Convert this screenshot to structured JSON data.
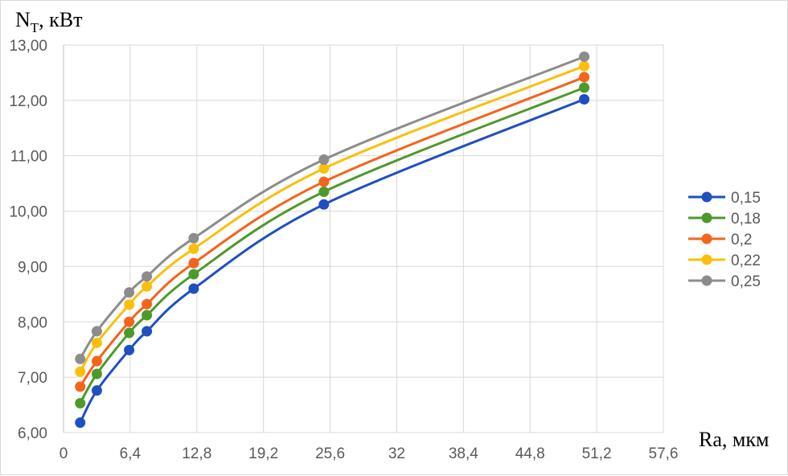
{
  "chart_data": {
    "type": "line",
    "ylabel_main": "N",
    "ylabel_sub": "T",
    "ylabel_unit": ", кВт",
    "xlabel": "Ra, мкм",
    "xlim": [
      0,
      57.6
    ],
    "ylim": [
      6,
      13
    ],
    "x_ticks": [
      0,
      6.4,
      12.8,
      19.2,
      25.6,
      32,
      38.4,
      44.8,
      51.2,
      57.6
    ],
    "x_tick_labels": [
      "0",
      "6,4",
      "12,8",
      "19,2",
      "25,6",
      "32",
      "38,4",
      "44,8",
      "51,2",
      "57,6"
    ],
    "y_ticks": [
      6,
      7,
      8,
      9,
      10,
      11,
      12,
      13
    ],
    "y_tick_labels": [
      "6,00",
      "7,00",
      "8,00",
      "9,00",
      "10,00",
      "11,00",
      "12,00",
      "13,00"
    ],
    "grid": true,
    "legend_position": "right",
    "x": [
      1.6,
      3.2,
      6.3,
      8.0,
      12.5,
      25.0,
      50.0
    ],
    "series": [
      {
        "name": "0,15",
        "color": "#1f4fc1",
        "values": [
          6.18,
          6.76,
          7.49,
          7.83,
          8.6,
          10.12,
          12.02
        ]
      },
      {
        "name": "0,18",
        "color": "#4c9a2a",
        "values": [
          6.53,
          7.06,
          7.8,
          8.12,
          8.86,
          10.35,
          12.23
        ]
      },
      {
        "name": "0,2",
        "color": "#f4641c",
        "values": [
          6.83,
          7.29,
          8.0,
          8.32,
          9.06,
          10.53,
          12.42
        ]
      },
      {
        "name": "0,22",
        "color": "#fbbf0a",
        "values": [
          7.1,
          7.62,
          8.31,
          8.64,
          9.32,
          10.77,
          12.62
        ]
      },
      {
        "name": "0,25",
        "color": "#8c8c8c",
        "values": [
          7.33,
          7.83,
          8.53,
          8.82,
          9.51,
          10.93,
          12.79
        ]
      }
    ]
  }
}
